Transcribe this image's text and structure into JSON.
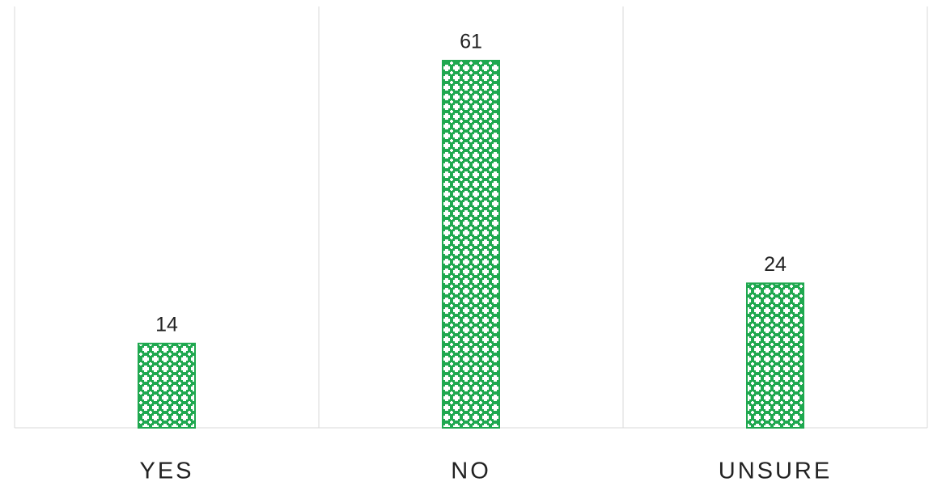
{
  "chart_data": {
    "type": "bar",
    "categories": [
      "YES",
      "NO",
      "UNSURE"
    ],
    "values": [
      14,
      61,
      24
    ],
    "color": "#1fa84f",
    "ylim": [
      0,
      70
    ]
  }
}
